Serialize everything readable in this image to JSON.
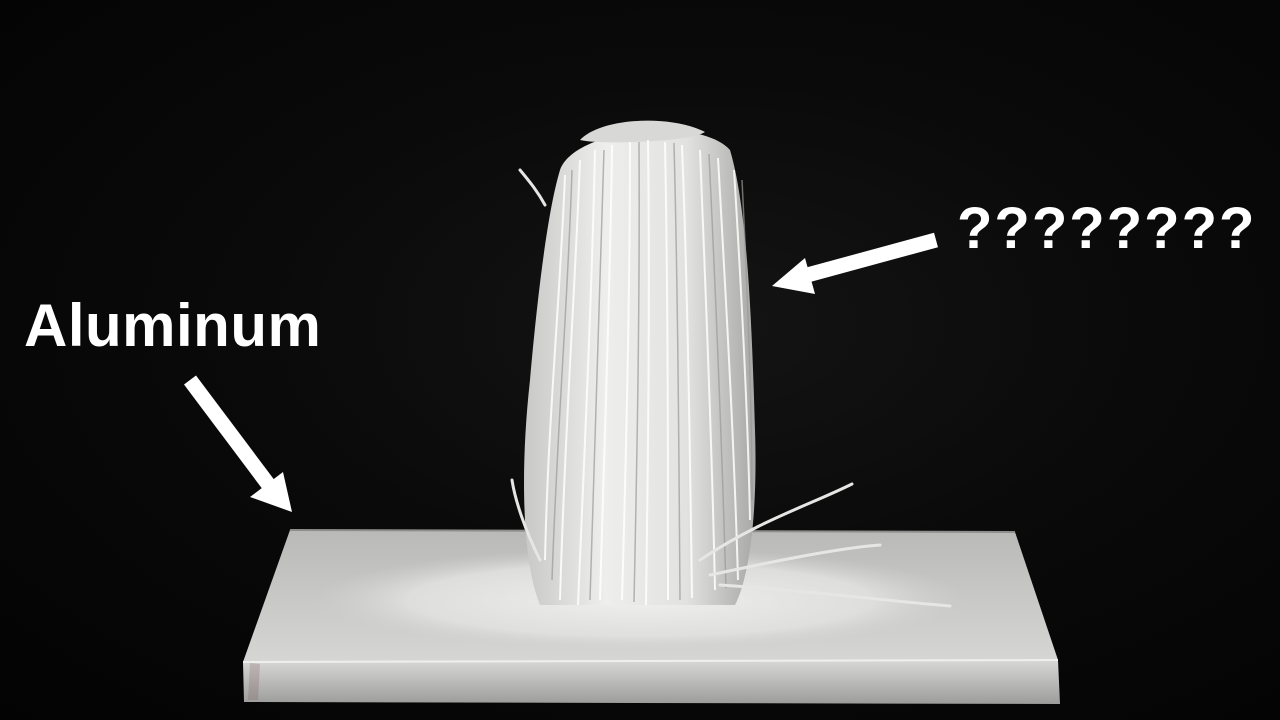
{
  "labels": {
    "left": "Aluminum",
    "right": "????????"
  },
  "colors": {
    "background": "#050505",
    "annotation": "#ffffff",
    "plate": "#c9c9c7",
    "fibers": "#e4e4e2"
  },
  "icons": {
    "left_arrow": "arrow-down-right-icon",
    "right_arrow": "arrow-left-icon"
  }
}
